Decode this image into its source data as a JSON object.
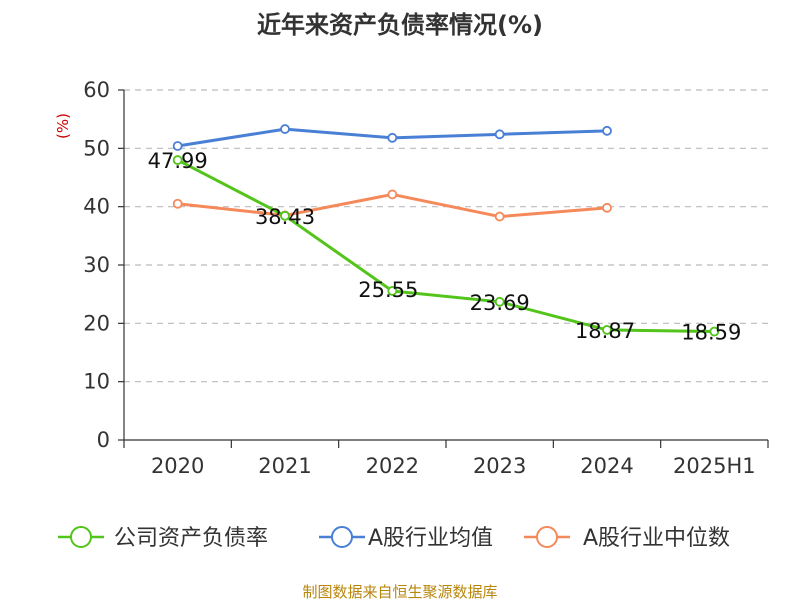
{
  "chart_data": {
    "type": "line",
    "title": "近年来资产负债率情况(%)",
    "ylabel": "(%)",
    "xlabel": "",
    "categories": [
      "2020",
      "2021",
      "2022",
      "2023",
      "2024",
      "2025H1"
    ],
    "ylim": [
      0,
      60
    ],
    "yticks": [
      0,
      10,
      20,
      30,
      40,
      50,
      60
    ],
    "grid": true,
    "legend_position": "bottom",
    "series": [
      {
        "name": "公司资产负债率",
        "color": "#52c41a",
        "values": [
          47.99,
          38.43,
          25.55,
          23.69,
          18.87,
          18.59
        ],
        "labels": [
          "47.99",
          "38.43",
          "25.55",
          "23.69",
          "18.87",
          "18.59"
        ]
      },
      {
        "name": "A股行业均值",
        "color": "#4a7fd6",
        "values": [
          50.4,
          53.3,
          51.8,
          52.4,
          53.0,
          null
        ]
      },
      {
        "name": "A股行业中位数",
        "color": "#f5895a",
        "values": [
          40.5,
          38.5,
          42.1,
          38.3,
          39.8,
          null
        ]
      }
    ],
    "source": "制图数据来自恒生聚源数据库"
  }
}
